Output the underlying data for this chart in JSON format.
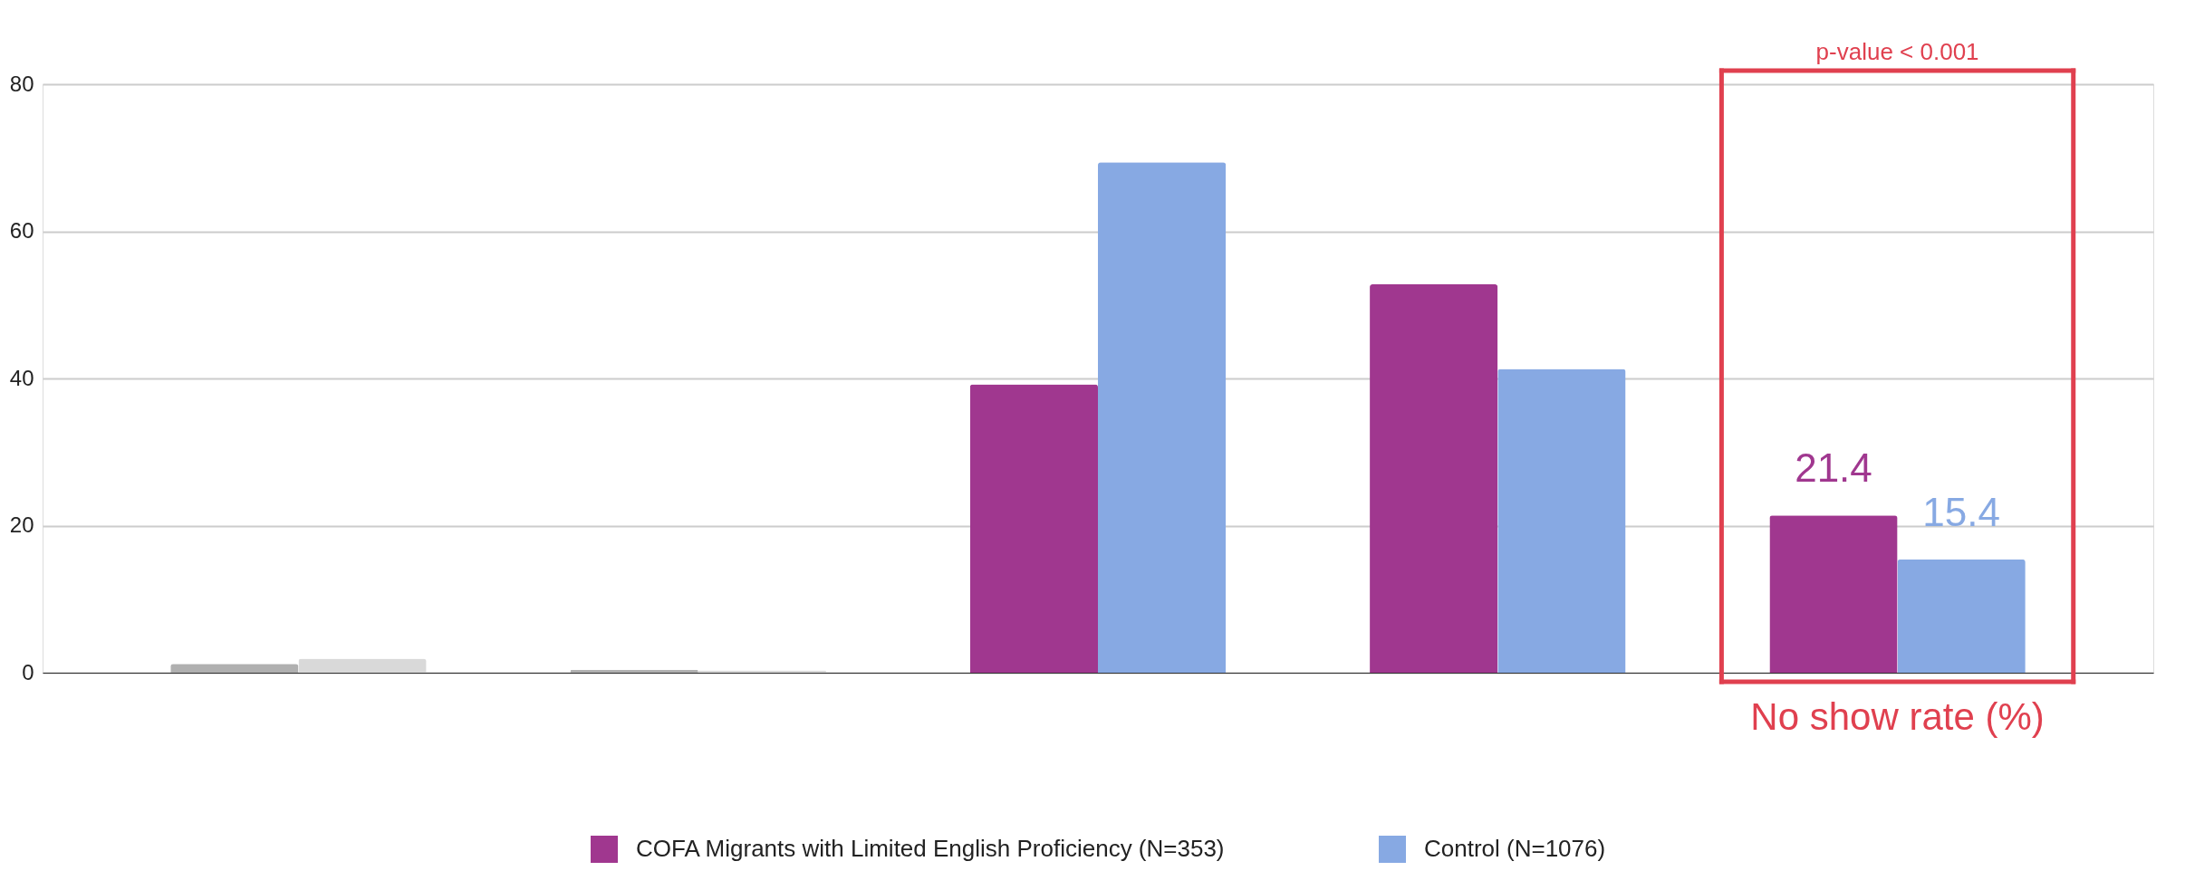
{
  "chart_data": {
    "type": "bar",
    "categories": [
      null,
      null,
      null,
      null,
      null
    ],
    "series": [
      {
        "name": "COFA Migrants with Limited English Proficiency (N=353)",
        "color": "#a0378f",
        "colors": [
          "#b0b0b0",
          "#b0b0b0",
          "#a0378f",
          "#a0378f",
          "#a0378f"
        ],
        "values": [
          1.2,
          0.4,
          39.2,
          52.8,
          21.4
        ],
        "value_labels": [
          null,
          null,
          null,
          null,
          "21.4"
        ]
      },
      {
        "name": "Control (N=1076)",
        "color": "#87a9e3",
        "colors": [
          "#d9d9d9",
          "#d9d9d9",
          "#87a9e3",
          "#87a9e3",
          "#87a9e3"
        ],
        "values": [
          1.9,
          0.3,
          69.4,
          41.3,
          15.4
        ],
        "value_labels": [
          null,
          null,
          null,
          null,
          "15.4"
        ]
      }
    ],
    "ylim": [
      0,
      80
    ],
    "yticks": [
      0,
      20,
      40,
      60,
      80
    ],
    "grid": "y",
    "legend": "bottom",
    "tick_labels": "y",
    "annotations": [
      "p-value < 0.001",
      "No show rate (%)"
    ]
  }
}
